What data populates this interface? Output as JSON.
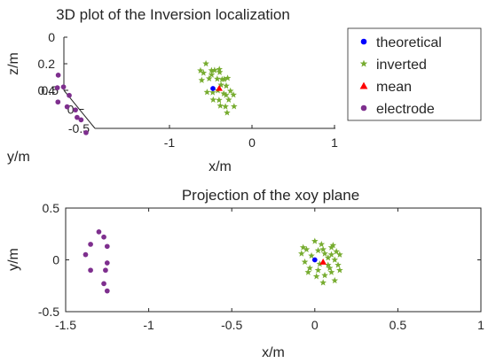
{
  "chart_data": [
    {
      "type": "scatter",
      "subtype": "3d",
      "title": "3D plot of the Inversion localization",
      "xlabel": "x/m",
      "ylabel": "y/m",
      "zlabel": "z/m",
      "xticks": [
        "-1",
        "0",
        "1"
      ],
      "yticks": [
        "-0.5",
        "0",
        "0.5"
      ],
      "zticks": [
        "0",
        "0.2",
        "0.4"
      ],
      "zdir": "reverse",
      "legend": {
        "placement": "top-right",
        "entries": [
          {
            "name": "theoretical",
            "marker": "circle",
            "color": "#0000ff"
          },
          {
            "name": "inverted",
            "marker": "star",
            "color": "#77ac30"
          },
          {
            "name": "mean",
            "marker": "triangle",
            "color": "#ff0000"
          },
          {
            "name": "electrode",
            "marker": "circle",
            "color": "#7e2f8e"
          }
        ]
      },
      "series": [
        {
          "name": "theoretical",
          "color": "#0000ff",
          "marker": "circle",
          "points": [
            [
              0,
              0,
              0.2
            ]
          ]
        },
        {
          "name": "mean",
          "color": "#ff0000",
          "marker": "triangle",
          "points": [
            [
              0.05,
              -0.02,
              0.19
            ]
          ]
        },
        {
          "name": "inverted",
          "color": "#77ac30",
          "marker": "star",
          "points": [
            [
              -0.05,
              0.1,
              0.12
            ],
            [
              0.05,
              0.1,
              0.1
            ],
            [
              0.1,
              0.05,
              0.15
            ],
            [
              0.12,
              0,
              0.18
            ],
            [
              0.08,
              -0.05,
              0.22
            ],
            [
              0.02,
              -0.1,
              0.25
            ],
            [
              -0.03,
              -0.08,
              0.2
            ],
            [
              0.06,
              -0.15,
              0.28
            ],
            [
              0.1,
              -0.12,
              0.24
            ],
            [
              0.14,
              -0.05,
              0.2
            ],
            [
              0.15,
              0.05,
              0.14
            ],
            [
              -0.08,
              0.06,
              0.16
            ],
            [
              -0.06,
              -0.02,
              0.22
            ],
            [
              0.04,
              0.15,
              0.12
            ],
            [
              0.1,
              0.12,
              0.1
            ],
            [
              0,
              0.18,
              0.08
            ],
            [
              0.12,
              -0.2,
              0.26
            ],
            [
              0.05,
              -0.22,
              0.3
            ],
            [
              0.08,
              0.02,
              0.18
            ],
            [
              -0.02,
              0.04,
              0.14
            ],
            [
              0.03,
              -0.04,
              0.2
            ],
            [
              0.13,
              0.08,
              0.16
            ],
            [
              -0.04,
              -0.12,
              0.24
            ],
            [
              0.09,
              -0.08,
              0.22
            ],
            [
              0.11,
              0.14,
              0.13
            ],
            [
              0.01,
              -0.16,
              0.27
            ],
            [
              0.15,
              -0.1,
              0.21
            ],
            [
              -0.07,
              0.12,
              0.11
            ],
            [
              0.06,
              0.06,
              0.15
            ],
            [
              0.02,
              0.09,
              0.13
            ]
          ]
        },
        {
          "name": "electrode",
          "color": "#7e2f8e",
          "marker": "circle",
          "points": [
            [
              -1.3,
              0.27,
              0.2
            ],
            [
              -1.27,
              0.22,
              0.27
            ],
            [
              -1.35,
              0.15,
              0.25
            ],
            [
              -1.25,
              0.13,
              0.3
            ],
            [
              -1.38,
              0.05,
              0.32
            ],
            [
              -1.25,
              -0.03,
              0.35
            ],
            [
              -1.35,
              -0.1,
              0.3
            ],
            [
              -1.26,
              -0.1,
              0.38
            ],
            [
              -1.27,
              -0.23,
              0.35
            ],
            [
              -1.25,
              -0.3,
              0.42
            ]
          ]
        }
      ]
    },
    {
      "type": "scatter",
      "title": "Projection of the xoy plane",
      "xlabel": "x/m",
      "ylabel": "y/m",
      "xlim": [
        -1.5,
        1
      ],
      "ylim": [
        -0.5,
        0.5
      ],
      "xticks": [
        -1.5,
        -1,
        -0.5,
        0,
        0.5,
        1
      ],
      "yticks": [
        -0.5,
        0,
        0.5
      ],
      "xtick_labels": [
        "-1.5",
        "-1",
        "-0.5",
        "0",
        "0.5",
        "1"
      ],
      "ytick_labels": [
        "-0.5",
        "0",
        "0.5"
      ],
      "grid": false,
      "series": [
        {
          "name": "theoretical",
          "color": "#0000ff",
          "marker": "circle",
          "points": [
            [
              0,
              0
            ]
          ]
        },
        {
          "name": "mean",
          "color": "#ff0000",
          "marker": "triangle",
          "points": [
            [
              0.05,
              -0.02
            ]
          ]
        },
        {
          "name": "inverted",
          "color": "#77ac30",
          "marker": "star",
          "points": [
            [
              -0.05,
              0.1
            ],
            [
              0.05,
              0.1
            ],
            [
              0.1,
              0.05
            ],
            [
              0.12,
              0
            ],
            [
              0.08,
              -0.05
            ],
            [
              0.02,
              -0.1
            ],
            [
              -0.03,
              -0.08
            ],
            [
              0.06,
              -0.15
            ],
            [
              0.1,
              -0.12
            ],
            [
              0.14,
              -0.05
            ],
            [
              0.15,
              0.05
            ],
            [
              -0.08,
              0.06
            ],
            [
              -0.06,
              -0.02
            ],
            [
              0.04,
              0.15
            ],
            [
              0.1,
              0.12
            ],
            [
              0,
              0.18
            ],
            [
              0.12,
              -0.2
            ],
            [
              0.05,
              -0.22
            ],
            [
              0.08,
              0.02
            ],
            [
              -0.02,
              0.04
            ],
            [
              0.03,
              -0.04
            ],
            [
              0.13,
              0.08
            ],
            [
              -0.04,
              -0.12
            ],
            [
              0.09,
              -0.08
            ],
            [
              0.11,
              0.14
            ],
            [
              0.01,
              -0.16
            ],
            [
              0.15,
              -0.1
            ],
            [
              -0.07,
              0.12
            ],
            [
              0.06,
              0.06
            ],
            [
              0.02,
              0.09
            ]
          ]
        },
        {
          "name": "electrode",
          "color": "#7e2f8e",
          "marker": "circle",
          "points": [
            [
              -1.3,
              0.27
            ],
            [
              -1.27,
              0.22
            ],
            [
              -1.35,
              0.15
            ],
            [
              -1.25,
              0.13
            ],
            [
              -1.38,
              0.05
            ],
            [
              -1.25,
              -0.03
            ],
            [
              -1.35,
              -0.1
            ],
            [
              -1.26,
              -0.1
            ],
            [
              -1.27,
              -0.23
            ],
            [
              -1.25,
              -0.3
            ]
          ]
        }
      ]
    }
  ]
}
